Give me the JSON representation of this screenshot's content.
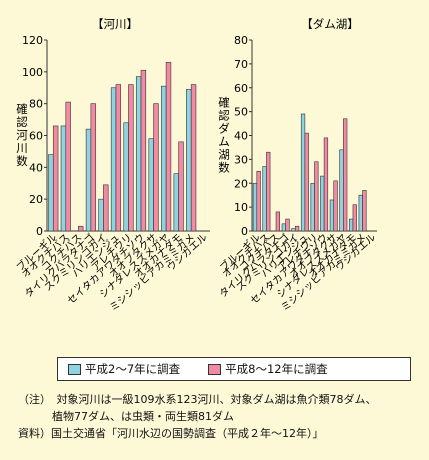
{
  "colors": {
    "series1": "#8fd3e0",
    "series2": "#f28aa3",
    "axis": "#333333",
    "background": "#fdf8d6"
  },
  "chart_data": [
    {
      "type": "bar",
      "title": "【河川】",
      "ylabel": "確認河川数",
      "ylim": [
        0,
        120
      ],
      "yticks": [
        0,
        20,
        40,
        60,
        80,
        100,
        120
      ],
      "categories": [
        "ブルーギル",
        "オオクチバス",
        "コクチバス",
        "タイリクバラタナゴ",
        "スクミリンゴガイ",
        "ハリエンジュ",
        "アレチウリ",
        "セイタカアワダチソウ",
        "オオブタクサ",
        "シナダレスズメガヤ",
        "オオカナダモ",
        "ミシシッピアカミミガメ",
        "ウシガエル"
      ],
      "series": [
        {
          "name": "平成2～7年に調査",
          "values": [
            48,
            66,
            0,
            64,
            20,
            90,
            68,
            97,
            58,
            91,
            36,
            89,
            0
          ]
        },
        {
          "name": "平成8～12年に調査",
          "values": [
            66,
            81,
            3,
            80,
            29,
            92,
            92,
            101,
            80,
            106,
            56,
            92,
            0
          ]
        }
      ]
    },
    {
      "type": "bar",
      "title": "【ダム湖】",
      "ylabel": "確認ダム湖数",
      "ylim": [
        0,
        80
      ],
      "yticks": [
        0,
        10,
        20,
        30,
        40,
        50,
        60,
        70,
        80
      ],
      "categories": [
        "ブルーギル",
        "オオクチバス",
        "コクチバス",
        "タイリクバラタナゴ",
        "スクミリンゴガイ",
        "ハリエンジュ",
        "アレチウリ",
        "セイタカアワダチソウ",
        "オオブタクサ",
        "シナダレスズメガヤ",
        "オオカナダモ",
        "ミシシッピアカミミガメ",
        "ウシガエル"
      ],
      "series": [
        {
          "name": "平成2～7年に調査",
          "values": [
            20,
            27,
            0,
            3,
            1,
            49,
            20,
            23,
            13,
            34,
            5,
            15,
            0
          ]
        },
        {
          "name": "平成8～12年に調査",
          "values": [
            25,
            33,
            8,
            5,
            2,
            41,
            29,
            39,
            21,
            47,
            11,
            17,
            0
          ]
        }
      ]
    }
  ],
  "legend": {
    "series1_label": "平成2～7年に調査",
    "series2_label": "平成8～12年に調査"
  },
  "notes": {
    "line1": "（注）　対象河川は一級109水系123河川、対象ダム湖は魚介類78ダム、",
    "line2": "植物77ダム、は虫類・両生類81ダム",
    "line3": "資料）国土交通省「河川水辺の国勢調査（平成２年～12年）」"
  }
}
